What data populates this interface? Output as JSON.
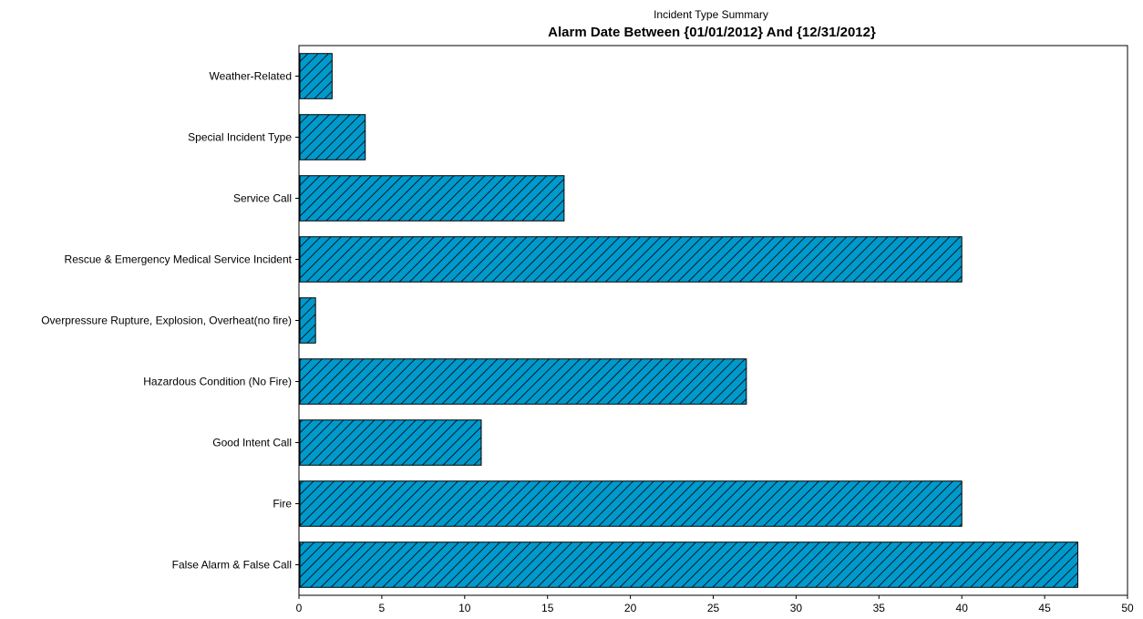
{
  "chart_data": {
    "type": "bar",
    "orientation": "horizontal",
    "title": "Alarm Date Between {01/01/2012} And {12/31/2012}",
    "subtitle": "Incident Type Summary",
    "xlabel": "",
    "ylabel": "",
    "categories": [
      "Weather-Related",
      "Special Incident Type",
      "Service Call",
      "Rescue & Emergency Medical Service Incident",
      "Overpressure Rupture, Explosion, Overheat(no fire)",
      "Hazardous Condition (No Fire)",
      "Good Intent Call",
      "Fire",
      "False Alarm & False Call"
    ],
    "values": [
      2,
      4,
      16,
      40,
      1,
      27,
      11,
      40,
      47
    ],
    "xlim": [
      0,
      50
    ],
    "xticks": [
      0,
      5,
      10,
      15,
      20,
      25,
      30,
      35,
      40,
      45,
      50
    ],
    "grid": false,
    "legend": "none",
    "bar_color": "#0099cc",
    "hatch": "diagonal"
  }
}
